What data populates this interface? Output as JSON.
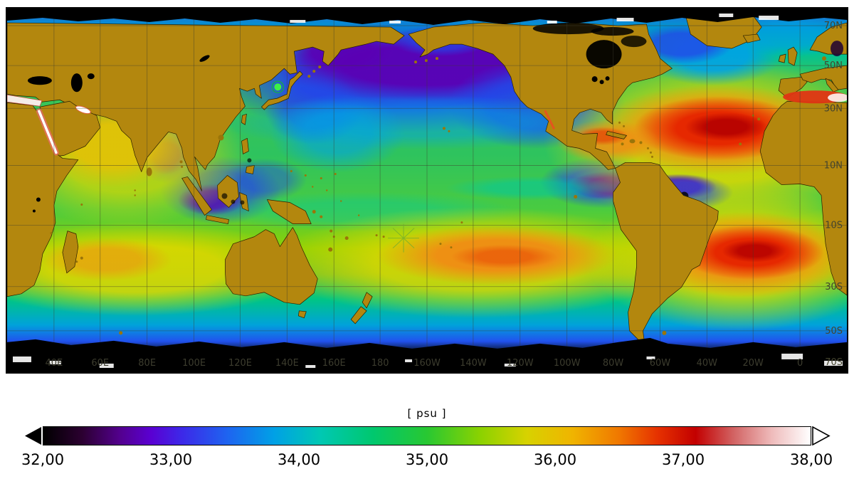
{
  "figure": {
    "map": {
      "lat_labels": [
        "70N",
        "50N",
        "30N",
        "10N",
        "10S",
        "30S",
        "50S",
        "70S"
      ],
      "lon_labels": [
        "40E",
        "60E",
        "80E",
        "100E",
        "120E",
        "140E",
        "160E",
        "180",
        "160W",
        "140W",
        "120W",
        "100W",
        "80W",
        "60W",
        "40W",
        "20W",
        "0"
      ],
      "land_color": "#b3870e",
      "no_data_color": "#000000"
    },
    "colorbar": {
      "title": "[ psu ]",
      "tick_labels": [
        "32,00",
        "33,00",
        "34,00",
        "35,00",
        "36,00",
        "37,00",
        "38,00"
      ],
      "gradient_stops": [
        "#000000 0%",
        "#2b0030 5%",
        "#53008e 10%",
        "#5a00d2 14%",
        "#3d28e8 18%",
        "#1e64f0 24%",
        "#00a0e6 30%",
        "#00c8b4 36%",
        "#00c86e 43%",
        "#28c832 50%",
        "#8cd200 57%",
        "#d7d200 63%",
        "#f0b400 69%",
        "#f07800 75%",
        "#e63200 80%",
        "#c30000 85%",
        "#d26464 90%",
        "#efbcbc 95%",
        "#ffffff 100%"
      ]
    }
  },
  "chart_data": {
    "type": "heatmap",
    "colorbar_label": "[ psu ]",
    "value_range": [
      32,
      38
    ],
    "colorbar_tick_values": [
      32,
      33,
      34,
      35,
      36,
      37,
      38
    ],
    "lat_gridlines": [
      "70N",
      "50N",
      "30N",
      "10N",
      "10S",
      "30S",
      "50S",
      "70S"
    ],
    "lon_gridlines": [
      "40E",
      "60E",
      "80E",
      "100E",
      "120E",
      "140E",
      "160E",
      "180",
      "160W",
      "140W",
      "120W",
      "100W",
      "80W",
      "60W",
      "40W",
      "20W",
      "0"
    ]
  }
}
